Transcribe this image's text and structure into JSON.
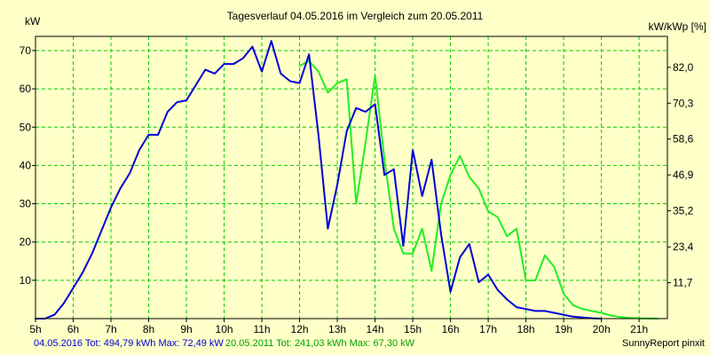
{
  "chart_data": {
    "type": "line",
    "title": "Tagesverlauf 04.05.2016 im Vergleich zum 20.05.2011",
    "ylabel": "kW",
    "y2label": "kW/kWp [%]",
    "ylim": [
      0,
      73.7
    ],
    "y2lim": [
      0,
      92.1
    ],
    "yticks": [
      "10",
      "20",
      "30",
      "40",
      "50",
      "60",
      "70"
    ],
    "y2ticks": [
      "11,7",
      "23,4",
      "35,2",
      "46,9",
      "58,6",
      "70,3",
      "82,0"
    ],
    "xlim": [
      5,
      21.75
    ],
    "xticks": [
      "5h",
      "6h",
      "7h",
      "8h",
      "9h",
      "10h",
      "11h",
      "12h",
      "13h",
      "14h",
      "15h",
      "16h",
      "17h",
      "18h",
      "19h",
      "20h",
      "21h"
    ],
    "grid": true,
    "series": [
      {
        "name": "04.05.2016",
        "color": "#0000d8",
        "x": [
          5.0,
          5.25,
          5.5,
          5.75,
          6.0,
          6.25,
          6.5,
          6.75,
          7.0,
          7.25,
          7.5,
          7.75,
          8.0,
          8.25,
          8.5,
          8.75,
          9.0,
          9.25,
          9.5,
          9.75,
          10.0,
          10.25,
          10.5,
          10.75,
          11.0,
          11.25,
          11.5,
          11.75,
          12.0,
          12.25,
          12.5,
          12.75,
          13.0,
          13.25,
          13.5,
          13.75,
          14.0,
          14.25,
          14.5,
          14.75,
          15.0,
          15.25,
          15.5,
          15.75,
          16.0,
          16.25,
          16.5,
          16.75,
          17.0,
          17.25,
          17.5,
          17.75,
          18.0,
          18.25,
          18.5,
          18.75,
          19.0,
          19.25,
          19.5,
          19.75,
          20.0
        ],
        "values": [
          0,
          0,
          1,
          4,
          8,
          12,
          17,
          23,
          29,
          34,
          38,
          44,
          48,
          48,
          54,
          56.5,
          57,
          61,
          65,
          64,
          66.5,
          66.5,
          68,
          71,
          64.5,
          72.5,
          64,
          62,
          61.5,
          69,
          48,
          23.5,
          35,
          49,
          55,
          54,
          56,
          37.5,
          39,
          19,
          44,
          32,
          41.5,
          22,
          7,
          16,
          19.5,
          9.5,
          11.5,
          7.5,
          5,
          3,
          2.5,
          2,
          2,
          1.5,
          1,
          0.5,
          0.3,
          0.1,
          0
        ]
      },
      {
        "name": "20.05.2011",
        "color": "#22ee22",
        "x": [
          12.0,
          12.25,
          12.5,
          12.75,
          13.0,
          13.25,
          13.5,
          13.75,
          14.0,
          14.25,
          14.5,
          14.75,
          15.0,
          15.25,
          15.5,
          15.75,
          16.0,
          16.25,
          16.5,
          16.75,
          17.0,
          17.25,
          17.5,
          17.75,
          18.0,
          18.25,
          18.5,
          18.75,
          19.0,
          19.25,
          19.5,
          19.75,
          20.0,
          20.25,
          20.5,
          20.75,
          21.0,
          21.5
        ],
        "values": [
          66,
          67.3,
          64.5,
          59,
          61.5,
          62.5,
          30,
          46,
          63.5,
          41.5,
          23.5,
          17,
          17,
          23.5,
          12.5,
          30,
          37.5,
          42.5,
          37,
          34,
          28,
          26.5,
          21.5,
          23.5,
          10,
          10,
          16.5,
          13.5,
          6.5,
          3.5,
          2.5,
          2,
          1.5,
          0.8,
          0.4,
          0.2,
          0.1,
          0
        ]
      }
    ]
  },
  "footer": {
    "series1_label": "04.05.2016 Tot: 494,79 kWh Max: 72,49 kW",
    "series2_label": "20.05.2011 Tot: 241,03 kWh Max: 67,30 kW",
    "credit": "SunnyReport pinxit"
  },
  "colors": {
    "background": "#ffffc8",
    "grid": "#00cc00",
    "axis": "#000000"
  }
}
